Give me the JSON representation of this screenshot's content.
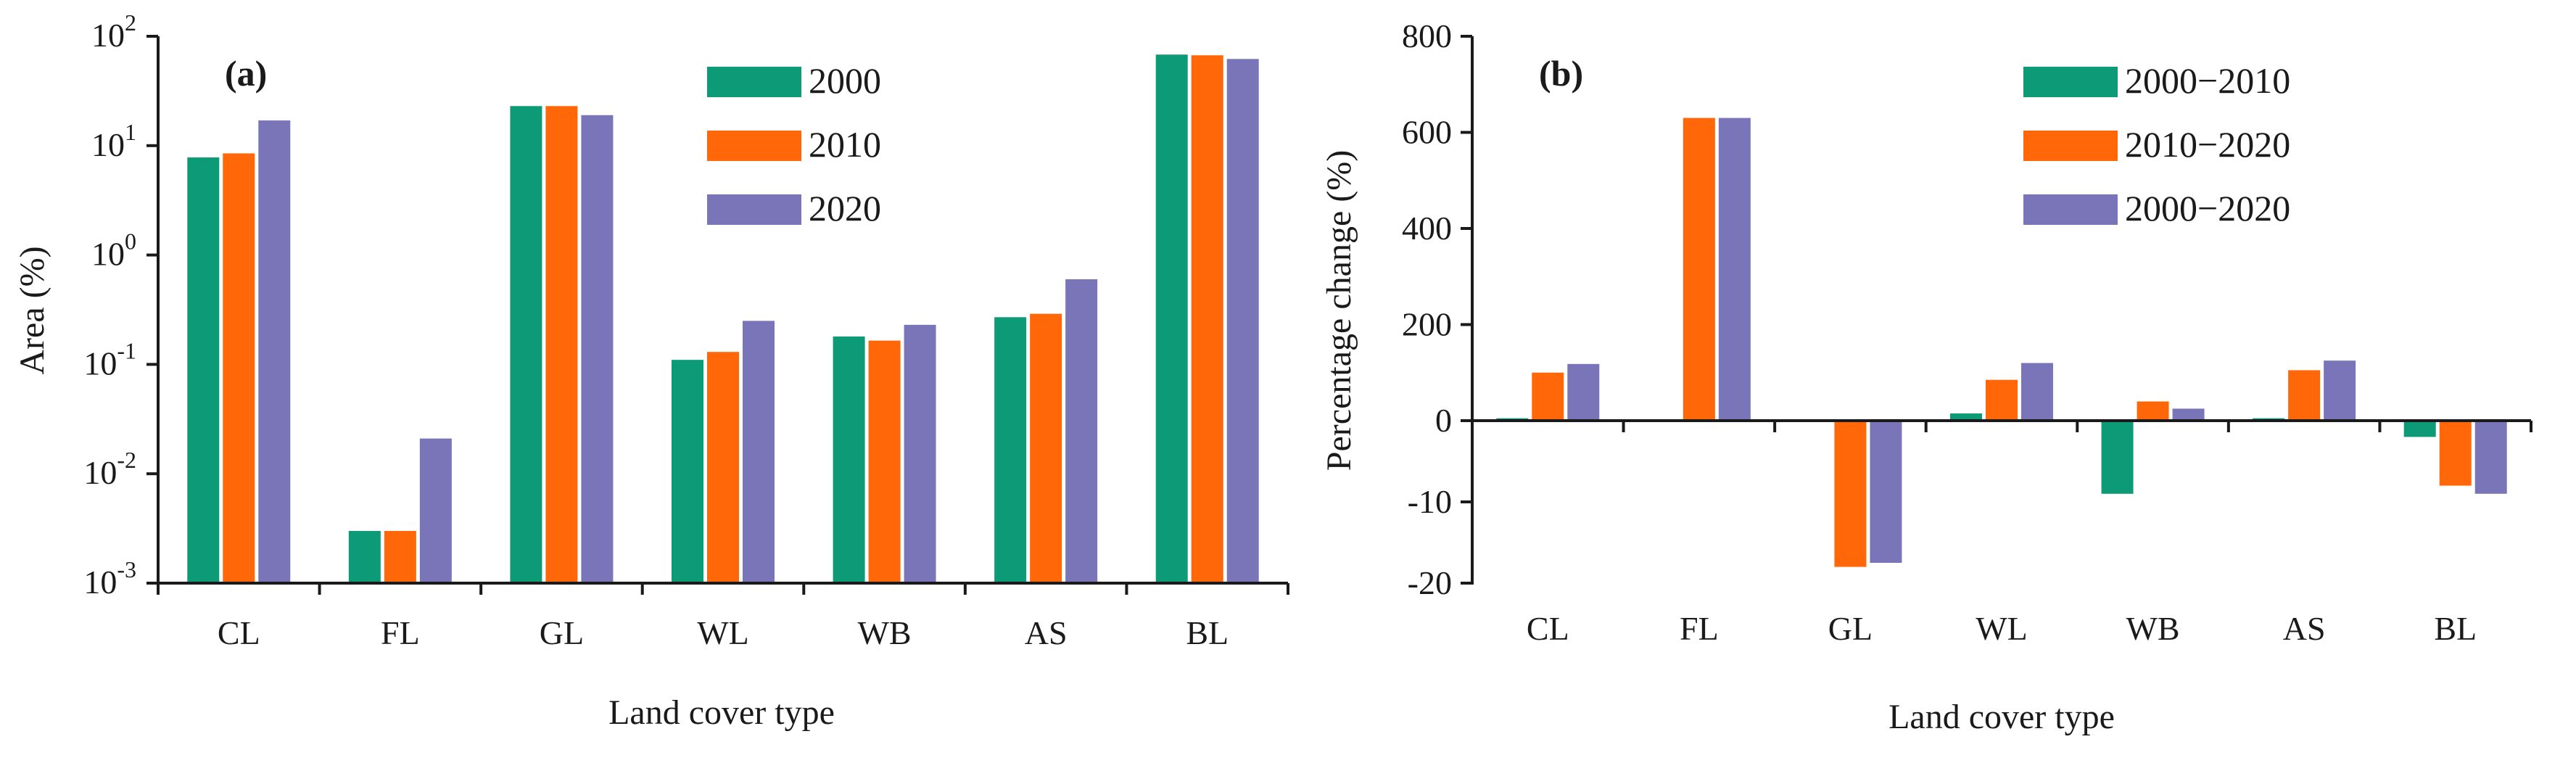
{
  "colors": {
    "s2000": "#0c9a77",
    "s2010": "#ff6708",
    "s2020": "#7a74b9"
  },
  "chart_data": [
    {
      "type": "bar",
      "panel_label": "(a)",
      "categories": [
        "CL",
        "FL",
        "GL",
        "WL",
        "WB",
        "AS",
        "BL"
      ],
      "series": [
        {
          "name": "2000",
          "values": [
            7.8,
            0.003,
            23,
            0.11,
            0.18,
            0.27,
            68
          ]
        },
        {
          "name": "2010",
          "values": [
            8.5,
            0.003,
            23,
            0.13,
            0.165,
            0.29,
            67
          ]
        },
        {
          "name": "2020",
          "values": [
            17,
            0.021,
            19,
            0.25,
            0.23,
            0.6,
            62
          ]
        }
      ],
      "yscale": "log",
      "ylim": [
        0.001,
        100
      ],
      "yticks": [
        {
          "value": 0.001,
          "base": "10",
          "exp": "-3"
        },
        {
          "value": 0.01,
          "base": "10",
          "exp": "-2"
        },
        {
          "value": 0.1,
          "base": "10",
          "exp": "-1"
        },
        {
          "value": 1,
          "base": "10",
          "exp": "0"
        },
        {
          "value": 10,
          "base": "10",
          "exp": "1"
        },
        {
          "value": 100,
          "base": "10",
          "exp": "2"
        }
      ],
      "xlabel": "Land cover type",
      "ylabel": "Area (%)",
      "legend_position": "top-right"
    },
    {
      "type": "bar",
      "panel_label": "(b)",
      "categories": [
        "CL",
        "FL",
        "GL",
        "WL",
        "WB",
        "AS",
        "BL"
      ],
      "series": [
        {
          "name": "2000−2010",
          "values": [
            5,
            0,
            0,
            15,
            -9,
            5,
            -2
          ]
        },
        {
          "name": "2010−2020",
          "values": [
            100,
            630,
            -18,
            85,
            40,
            105,
            -8
          ]
        },
        {
          "name": "2000−2020",
          "values": [
            118,
            630,
            -17.5,
            120,
            25,
            125,
            -9
          ]
        }
      ],
      "yscale": "broken",
      "ylim": [
        -20,
        800
      ],
      "yticks": [
        {
          "value": -20,
          "label": "-20"
        },
        {
          "value": -10,
          "label": "-10"
        },
        {
          "value": 0,
          "label": "0"
        },
        {
          "value": 200,
          "label": "200"
        },
        {
          "value": 400,
          "label": "400"
        },
        {
          "value": 600,
          "label": "600"
        },
        {
          "value": 800,
          "label": "800"
        }
      ],
      "xlabel": "Land cover type",
      "ylabel": "Percentage change (%)",
      "legend_position": "top-right"
    }
  ]
}
